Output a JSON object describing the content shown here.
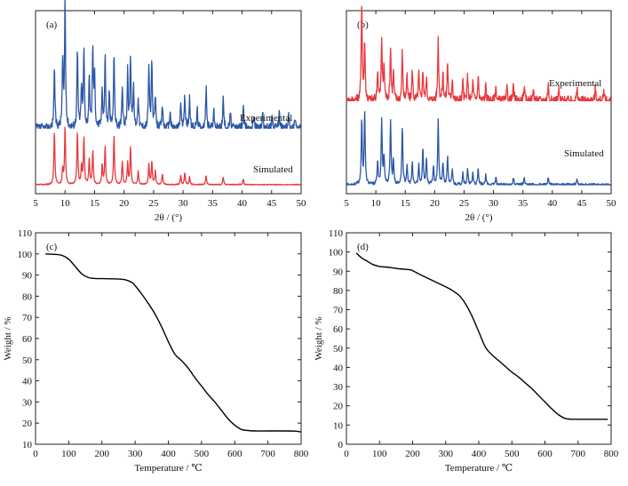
{
  "colors": {
    "experimental": "#2b56a6",
    "simulated": "#e8383d",
    "tga": "#000000"
  },
  "chart_data": [
    {
      "panel": "(a)",
      "type": "line",
      "xlabel": "2θ / (°)",
      "ylabel": "",
      "xlim": [
        5,
        50
      ],
      "xticks": [
        "5",
        "10",
        "15",
        "20",
        "25",
        "30",
        "35",
        "40",
        "45",
        "50"
      ],
      "grid": false,
      "series": [
        {
          "name": "Experimental",
          "color": "#2b56a6",
          "baseline": 0.0,
          "offset": 0.35,
          "noise": 0.028,
          "peaks": [
            [
              8.2,
              0.4
            ],
            [
              9.6,
              0.43
            ],
            [
              10.0,
              0.83
            ],
            [
              12.1,
              0.5
            ],
            [
              12.8,
              0.27
            ],
            [
              13.2,
              0.5
            ],
            [
              14.1,
              0.31
            ],
            [
              14.7,
              0.5
            ],
            [
              15.0,
              0.33
            ],
            [
              16.3,
              0.25
            ],
            [
              16.8,
              0.46
            ],
            [
              17.5,
              0.22
            ],
            [
              18.3,
              0.48
            ],
            [
              19.7,
              0.24
            ],
            [
              20.6,
              0.36
            ],
            [
              21.1,
              0.47
            ],
            [
              21.6,
              0.26
            ],
            [
              22.4,
              0.21
            ],
            [
              24.2,
              0.4
            ],
            [
              24.7,
              0.43
            ],
            [
              25.3,
              0.2
            ],
            [
              26.5,
              0.15
            ],
            [
              27.8,
              0.11
            ],
            [
              29.6,
              0.17
            ],
            [
              30.3,
              0.21
            ],
            [
              31.1,
              0.2
            ],
            [
              32.4,
              0.12
            ],
            [
              33.9,
              0.26
            ],
            [
              35.2,
              0.12
            ],
            [
              36.8,
              0.2
            ],
            [
              38.0,
              0.1
            ],
            [
              40.2,
              0.14
            ],
            [
              42.0,
              0.1
            ],
            [
              43.5,
              0.09
            ],
            [
              45.1,
              0.09
            ],
            [
              46.3,
              0.1
            ],
            [
              47.9,
              0.09
            ],
            [
              49.0,
              0.08
            ]
          ]
        },
        {
          "name": "Simulated",
          "color": "#e8383d",
          "baseline": 0.0,
          "offset": 0.0,
          "noise": 0.004,
          "peaks": [
            [
              8.2,
              0.35
            ],
            [
              9.6,
              0.1
            ],
            [
              10.0,
              0.38
            ],
            [
              12.1,
              0.34
            ],
            [
              12.8,
              0.12
            ],
            [
              13.2,
              0.31
            ],
            [
              14.1,
              0.17
            ],
            [
              14.7,
              0.22
            ],
            [
              16.3,
              0.13
            ],
            [
              16.8,
              0.25
            ],
            [
              18.3,
              0.32
            ],
            [
              19.7,
              0.15
            ],
            [
              20.6,
              0.14
            ],
            [
              21.1,
              0.25
            ],
            [
              22.4,
              0.09
            ],
            [
              24.2,
              0.13
            ],
            [
              24.7,
              0.15
            ],
            [
              25.3,
              0.09
            ],
            [
              26.5,
              0.07
            ],
            [
              29.6,
              0.06
            ],
            [
              30.3,
              0.08
            ],
            [
              31.1,
              0.05
            ],
            [
              33.9,
              0.06
            ],
            [
              36.8,
              0.05
            ],
            [
              40.2,
              0.04
            ]
          ]
        }
      ],
      "legend": [
        "Experimental",
        "Simulated"
      ]
    },
    {
      "panel": "(b)",
      "type": "line",
      "xlabel": "2θ / (°)",
      "ylabel": "",
      "xlim": [
        5,
        50
      ],
      "xticks": [
        "5",
        "10",
        "15",
        "20",
        "25",
        "30",
        "35",
        "40",
        "45",
        "50"
      ],
      "grid": false,
      "series": [
        {
          "name": "Experimental",
          "color": "#e8383d",
          "baseline": 0.0,
          "offset": 0.52,
          "noise": 0.03,
          "peaks": [
            [
              7.6,
              0.65
            ],
            [
              8.1,
              0.38
            ],
            [
              10.3,
              0.2
            ],
            [
              11.0,
              0.4
            ],
            [
              11.4,
              0.22
            ],
            [
              12.5,
              0.35
            ],
            [
              13.0,
              0.18
            ],
            [
              14.5,
              0.32
            ],
            [
              15.3,
              0.15
            ],
            [
              16.2,
              0.2
            ],
            [
              17.3,
              0.18
            ],
            [
              18.0,
              0.2
            ],
            [
              18.6,
              0.15
            ],
            [
              20.6,
              0.4
            ],
            [
              21.4,
              0.18
            ],
            [
              22.2,
              0.25
            ],
            [
              23.0,
              0.15
            ],
            [
              24.8,
              0.12
            ],
            [
              25.6,
              0.16
            ],
            [
              26.5,
              0.12
            ],
            [
              27.4,
              0.16
            ],
            [
              28.7,
              0.1
            ],
            [
              30.4,
              0.09
            ],
            [
              32.3,
              0.08
            ],
            [
              33.4,
              0.1
            ],
            [
              35.2,
              0.09
            ],
            [
              36.8,
              0.08
            ],
            [
              39.3,
              0.11
            ],
            [
              41.1,
              0.07
            ],
            [
              44.2,
              0.07
            ],
            [
              47.3,
              0.08
            ],
            [
              48.8,
              0.06
            ]
          ]
        },
        {
          "name": "Simulated",
          "color": "#2b56a6",
          "baseline": 0.0,
          "offset": 0.0,
          "noise": 0.01,
          "peaks": [
            [
              7.6,
              0.42
            ],
            [
              8.1,
              0.48
            ],
            [
              10.3,
              0.15
            ],
            [
              11.0,
              0.42
            ],
            [
              11.4,
              0.18
            ],
            [
              12.5,
              0.42
            ],
            [
              13.0,
              0.16
            ],
            [
              14.5,
              0.38
            ],
            [
              15.3,
              0.12
            ],
            [
              16.2,
              0.14
            ],
            [
              17.3,
              0.13
            ],
            [
              18.0,
              0.24
            ],
            [
              18.6,
              0.16
            ],
            [
              19.8,
              0.12
            ],
            [
              20.6,
              0.42
            ],
            [
              21.4,
              0.14
            ],
            [
              22.2,
              0.18
            ],
            [
              23.0,
              0.1
            ],
            [
              24.8,
              0.08
            ],
            [
              25.6,
              0.1
            ],
            [
              26.5,
              0.08
            ],
            [
              27.4,
              0.1
            ],
            [
              28.7,
              0.06
            ],
            [
              30.4,
              0.05
            ],
            [
              33.4,
              0.05
            ],
            [
              35.2,
              0.05
            ],
            [
              39.3,
              0.04
            ],
            [
              44.2,
              0.03
            ]
          ]
        }
      ],
      "legend": [
        "Experimental",
        "Simulated"
      ]
    },
    {
      "panel": "(c)",
      "type": "line",
      "xlabel": "Temperature / ℃",
      "ylabel": "Weight / %",
      "xlim": [
        0,
        800
      ],
      "ylim": [
        10,
        110
      ],
      "xticks": [
        "0",
        "100",
        "200",
        "300",
        "400",
        "500",
        "600",
        "700",
        "800"
      ],
      "yticks": [
        "10",
        "20",
        "30",
        "40",
        "50",
        "60",
        "70",
        "80",
        "90",
        "100",
        "110"
      ],
      "grid": false,
      "series": [
        {
          "name": "",
          "color": "#000000",
          "x": [
            30,
            60,
            80,
            100,
            120,
            140,
            160,
            180,
            200,
            240,
            270,
            290,
            300,
            320,
            340,
            360,
            380,
            400,
            420,
            440,
            460,
            480,
            500,
            520,
            540,
            560,
            580,
            600,
            620,
            640,
            660,
            700,
            740,
            780,
            800
          ],
          "y": [
            100,
            99.8,
            99.3,
            97.5,
            94,
            90.5,
            88.8,
            88.4,
            88.3,
            88.2,
            87.8,
            86.5,
            85,
            81,
            76.5,
            71.5,
            65.5,
            58.5,
            52.5,
            49.5,
            46,
            41.5,
            37.5,
            33.5,
            30,
            26,
            22,
            19,
            17,
            16.5,
            16.3,
            16.3,
            16.3,
            16.2,
            15.8
          ]
        }
      ]
    },
    {
      "panel": "(d)",
      "type": "line",
      "xlabel": "Temperature / ℃",
      "ylabel": "Weight / %",
      "xlim": [
        0,
        800
      ],
      "ylim": [
        0,
        110
      ],
      "xticks": [
        "0",
        "100",
        "200",
        "300",
        "400",
        "500",
        "600",
        "700",
        "800"
      ],
      "yticks": [
        "0",
        "10",
        "20",
        "30",
        "40",
        "50",
        "60",
        "70",
        "80",
        "90",
        "100",
        "110"
      ],
      "grid": false,
      "series": [
        {
          "name": "",
          "color": "#000000",
          "x": [
            30,
            45,
            60,
            80,
            100,
            130,
            160,
            190,
            200,
            220,
            250,
            280,
            310,
            340,
            360,
            380,
            400,
            420,
            440,
            460,
            480,
            500,
            520,
            540,
            560,
            580,
            600,
            620,
            640,
            660,
            680,
            700,
            740,
            790
          ],
          "y": [
            99.5,
            97,
            95.5,
            93.5,
            92.5,
            92,
            91.3,
            90.8,
            90.3,
            88.5,
            86,
            83.5,
            81,
            77.5,
            73,
            66.5,
            58.5,
            50.5,
            46.5,
            43.5,
            40.5,
            37.5,
            35,
            32,
            29,
            25.5,
            22,
            18.5,
            15.5,
            13.5,
            13,
            13,
            13,
            13
          ]
        }
      ]
    }
  ]
}
